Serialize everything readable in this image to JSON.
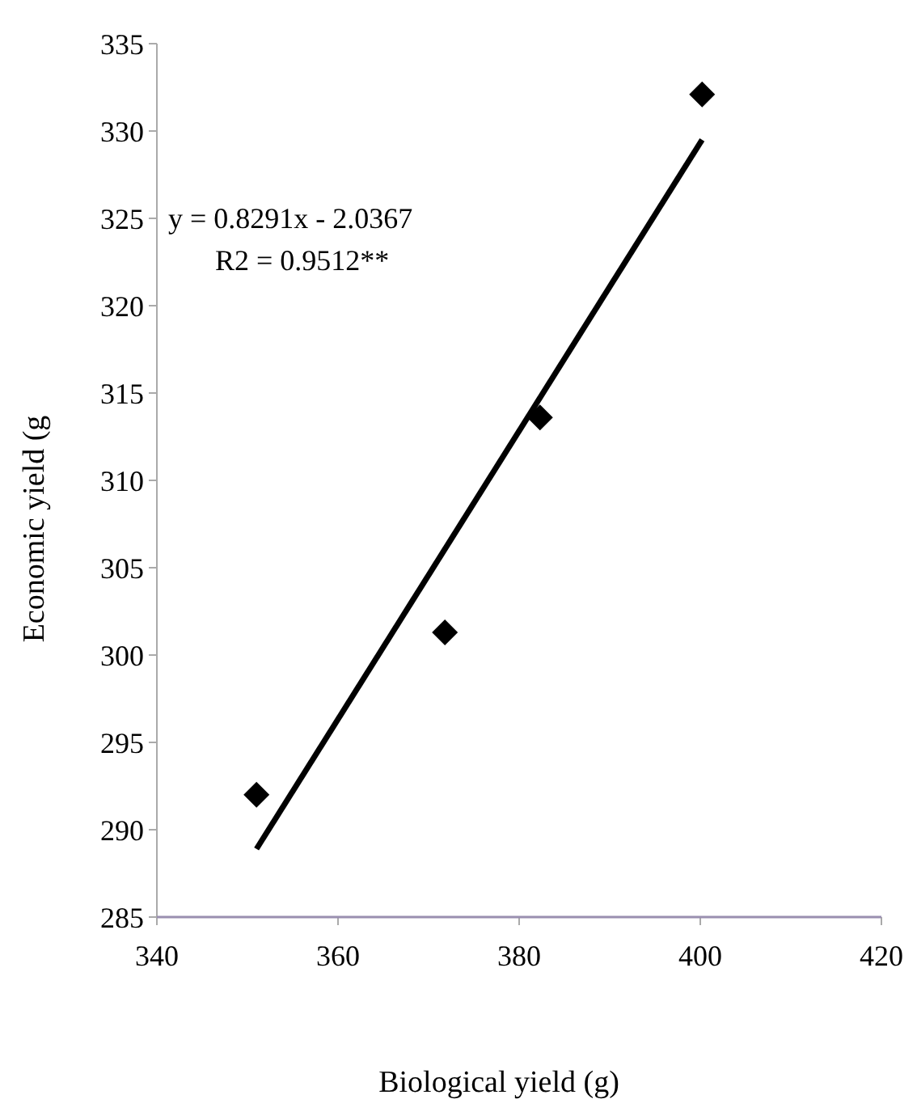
{
  "chart_data": {
    "type": "scatter",
    "xlabel": "Biological yield (g)",
    "ylabel": "Economic yield (g",
    "marker": "diamond",
    "grid": false,
    "xlim": [
      340,
      420
    ],
    "xticks": [
      340,
      360,
      380,
      400,
      420
    ],
    "ylim": [
      285,
      335
    ],
    "yticks": [
      285,
      290,
      295,
      300,
      305,
      310,
      315,
      320,
      325,
      330,
      335
    ],
    "series": [
      {
        "color": "#000000",
        "x": [
          351,
          371.8,
          382.3,
          400.2
        ],
        "values": [
          292,
          301.3,
          313.6,
          332.1
        ]
      },
      {
        "type": "line",
        "color": "#000000",
        "marker": "none",
        "x": [
          351,
          400.2
        ],
        "values": [
          288.9,
          329.5
        ]
      }
    ],
    "annotations": [
      "y = 0.8291x - 2.0367",
      "R2 = 0.9512**"
    ]
  }
}
